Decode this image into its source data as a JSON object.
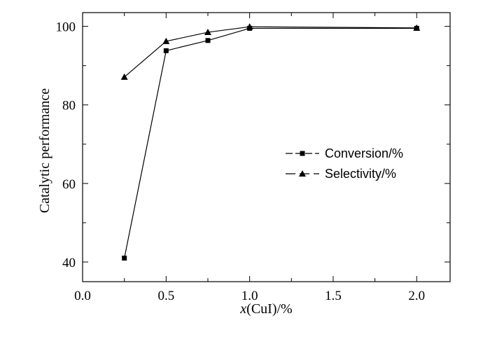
{
  "chart_data": {
    "type": "line",
    "xlabel_italic": "x",
    "xlabel_rest": "(CuI)/%",
    "ylabel": "Catalytic performance",
    "xlim": [
      0.0,
      2.2
    ],
    "ylim": [
      35,
      103.5
    ],
    "x_ticks": [
      "0.0",
      "0.5",
      "1.0",
      "1.5",
      "2.0"
    ],
    "y_ticks": [
      "40",
      "60",
      "80",
      "100"
    ],
    "legend_position": "right",
    "series": [
      {
        "name": "Conversion/%",
        "marker": "square",
        "x": [
          0.25,
          0.5,
          0.75,
          1.0,
          2.0
        ],
        "y": [
          41.0,
          93.8,
          96.4,
          99.5,
          99.5
        ]
      },
      {
        "name": "Selectivity/%",
        "marker": "triangle",
        "x": [
          0.25,
          0.5,
          0.75,
          1.0,
          2.0
        ],
        "y": [
          87.1,
          96.2,
          98.5,
          99.9,
          99.6
        ]
      }
    ]
  }
}
